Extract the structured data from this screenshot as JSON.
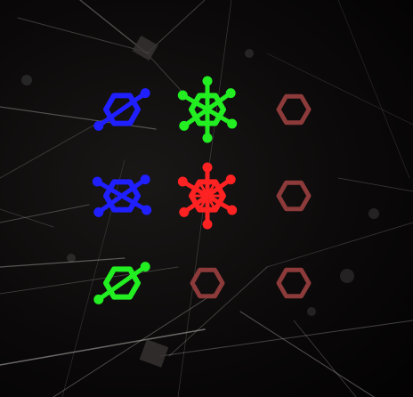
{
  "board": {
    "rows": 3,
    "cols": 3,
    "tiles": [
      {
        "row": 0,
        "col": 0,
        "state": "lined",
        "lines": 1,
        "color": "#1f1fff"
      },
      {
        "row": 0,
        "col": 1,
        "state": "lined",
        "lines": 3,
        "color": "#22ee22"
      },
      {
        "row": 0,
        "col": 2,
        "state": "empty",
        "lines": 0,
        "color": "#8c3a3a"
      },
      {
        "row": 1,
        "col": 0,
        "state": "lined",
        "lines": 2,
        "color": "#1f1fff"
      },
      {
        "row": 1,
        "col": 1,
        "state": "lined",
        "lines": 3,
        "color": "#ff2222"
      },
      {
        "row": 1,
        "col": 2,
        "state": "empty",
        "lines": 0,
        "color": "#8c3a3a"
      },
      {
        "row": 2,
        "col": 0,
        "state": "lined",
        "lines": 1,
        "color": "#22ee22"
      },
      {
        "row": 2,
        "col": 1,
        "state": "empty",
        "lines": 0,
        "color": "#8c3a3a"
      },
      {
        "row": 2,
        "col": 2,
        "state": "empty",
        "lines": 0,
        "color": "#8c3a3a"
      }
    ]
  },
  "colors": {
    "background": "#050303",
    "empty_tile": "#8c3a3a",
    "blue": "#1f1fff",
    "green": "#22ee22",
    "red": "#ff2222"
  }
}
